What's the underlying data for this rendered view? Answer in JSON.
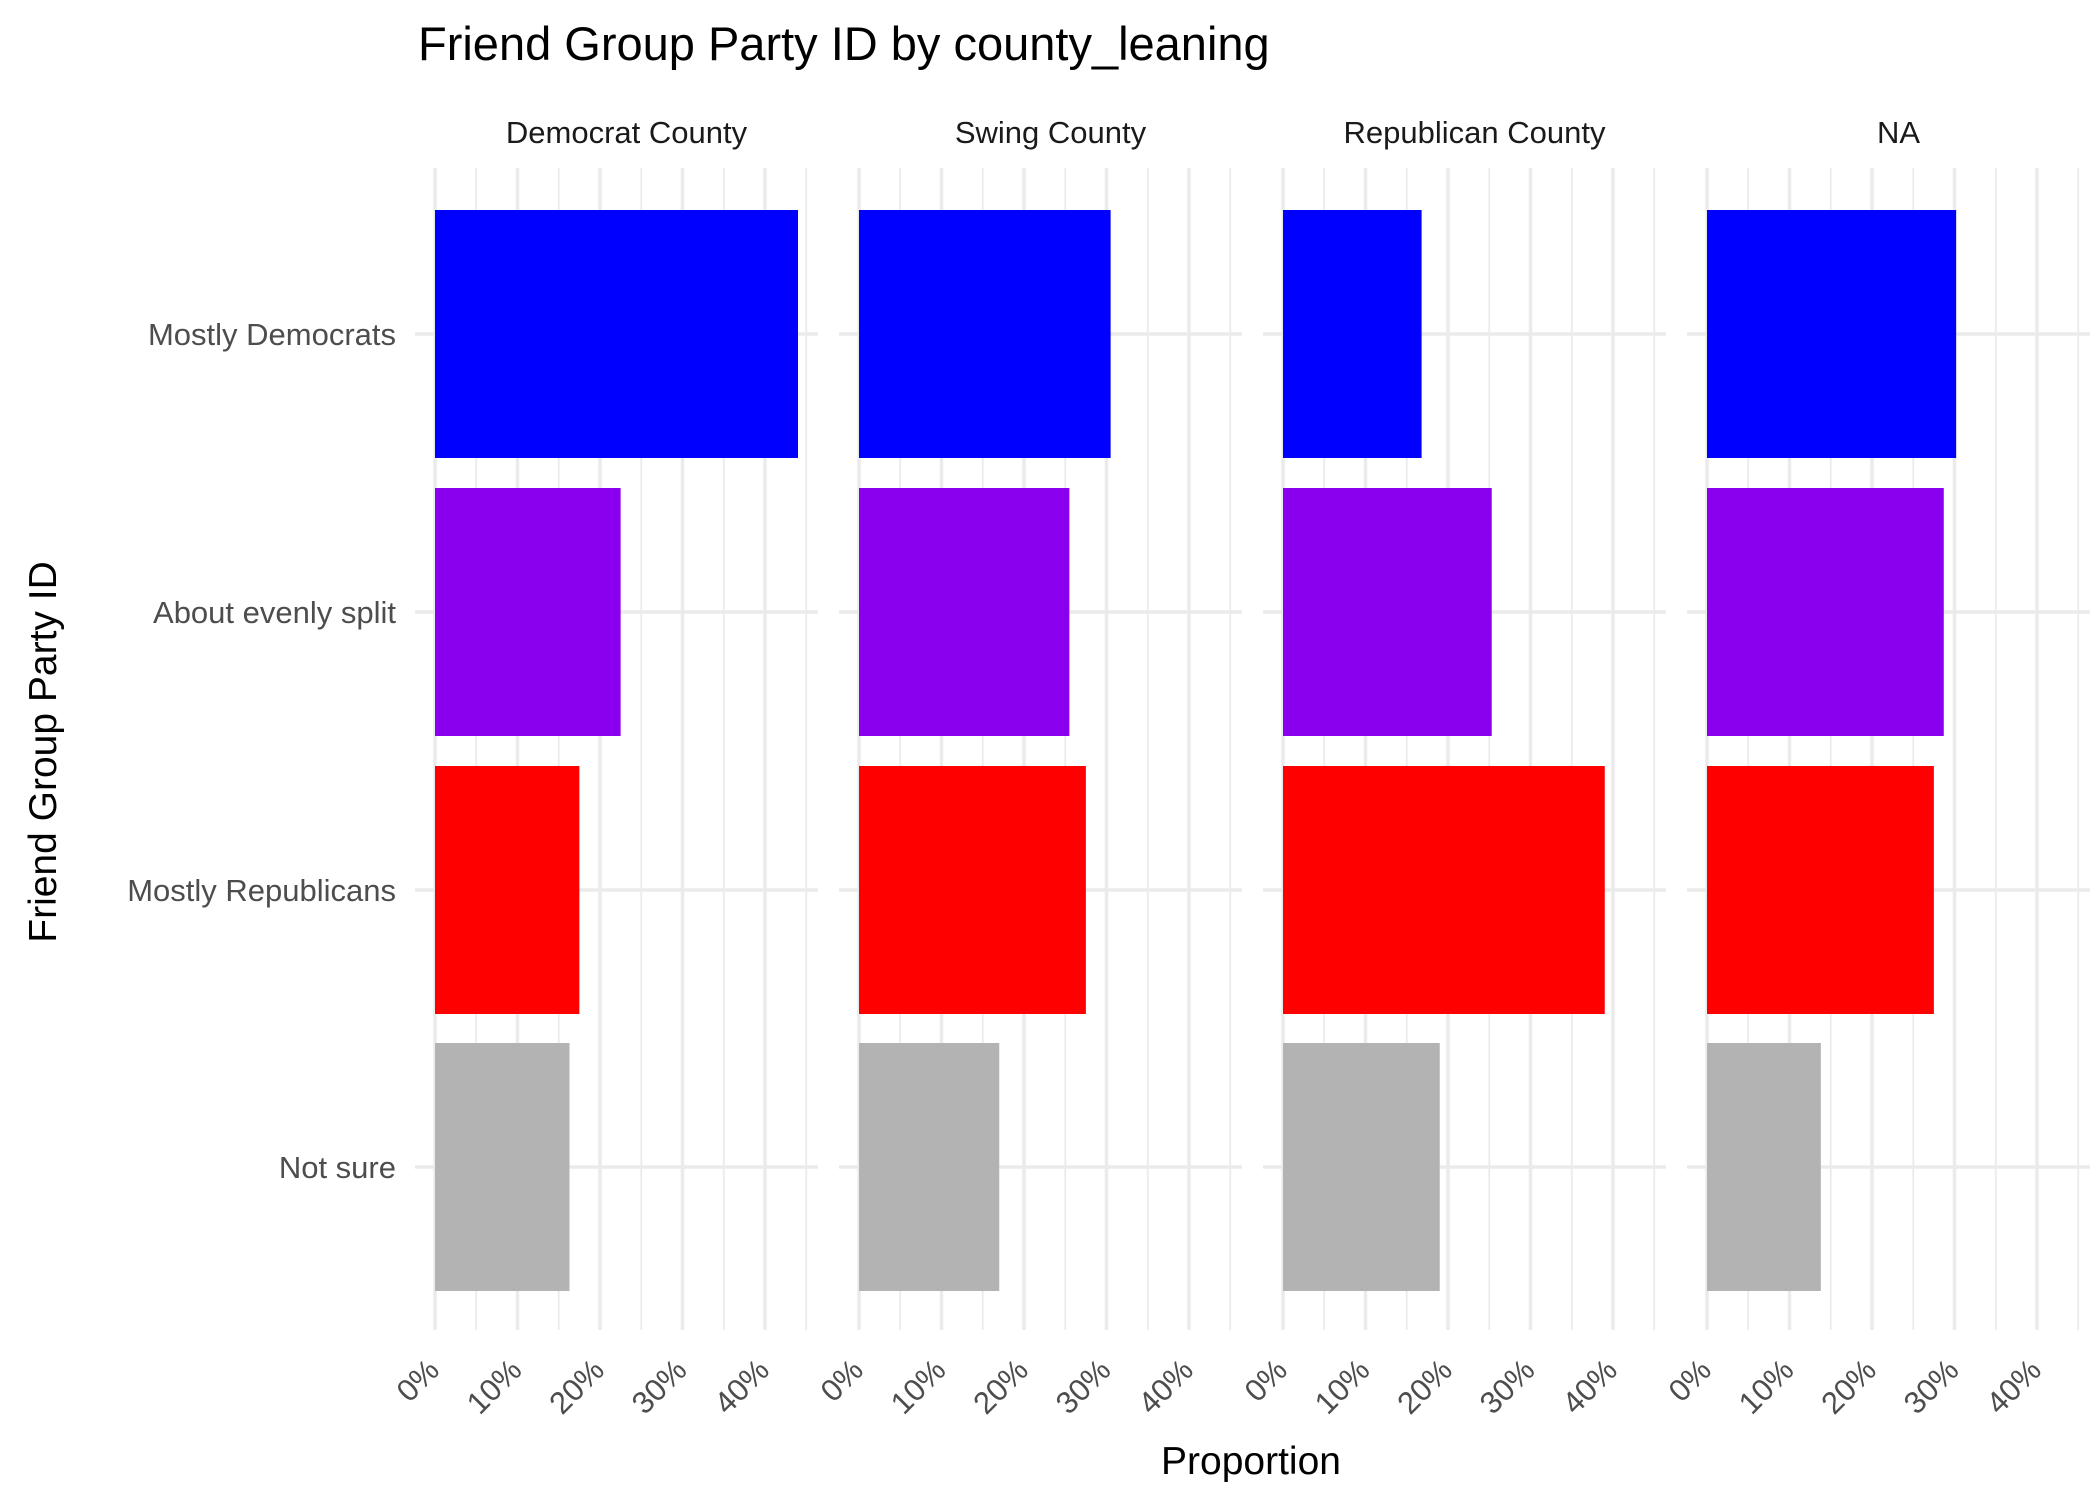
{
  "chart_data": {
    "type": "bar",
    "orientation": "horizontal",
    "faceted": true,
    "title": "Friend Group Party ID by county_leaning",
    "xlabel": "Proportion",
    "ylabel": "Friend Group Party ID",
    "categories": [
      "Mostly Democrats",
      "About evenly split",
      "Mostly Republicans",
      "Not sure"
    ],
    "colors": [
      "#0000ff",
      "#8a00ee",
      "#ff0000",
      "#b3b3b3"
    ],
    "x_ticks": [
      "0%",
      "10%",
      "20%",
      "30%",
      "40%"
    ],
    "xlim": [
      0,
      0.45
    ],
    "grid": true,
    "legend": "none",
    "facets": [
      {
        "label": "Democrat County",
        "values": [
          0.44,
          0.225,
          0.175,
          0.163
        ]
      },
      {
        "label": "Swing County",
        "values": [
          0.305,
          0.255,
          0.275,
          0.17
        ]
      },
      {
        "label": "Republican County",
        "values": [
          0.168,
          0.253,
          0.39,
          0.19
        ]
      },
      {
        "label": "NA",
        "values": [
          0.302,
          0.287,
          0.275,
          0.138
        ]
      }
    ]
  }
}
